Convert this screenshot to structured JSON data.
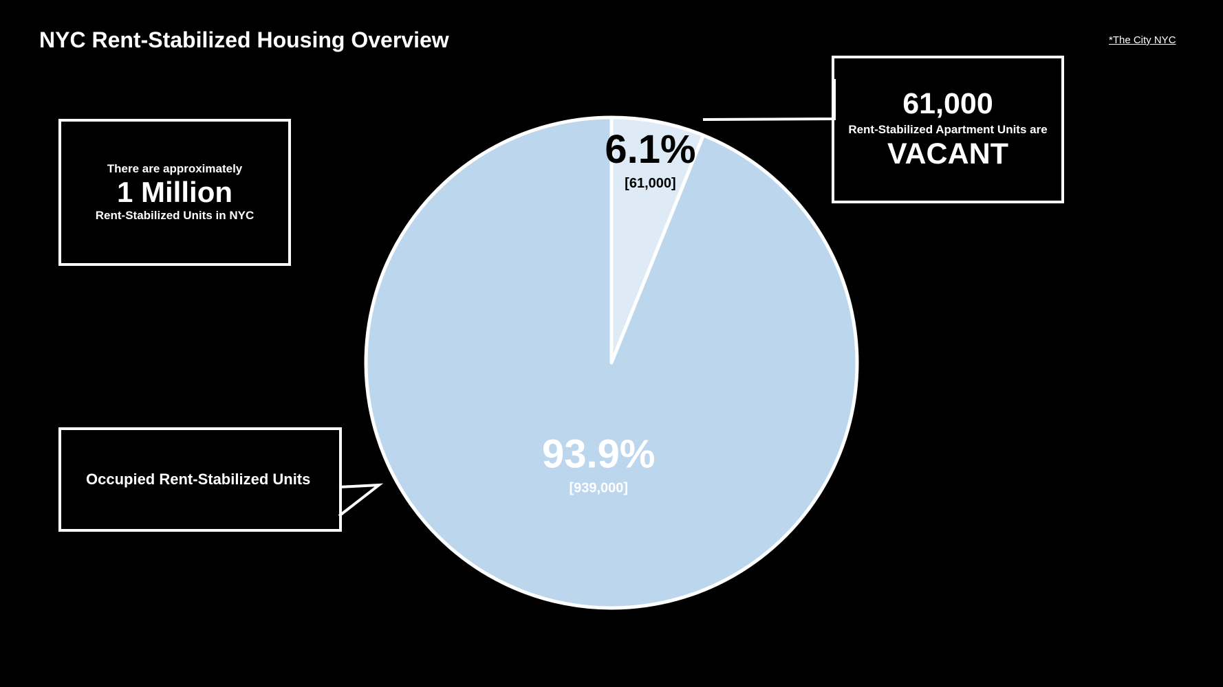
{
  "header": {
    "title": "NYC Rent-Stabilized Housing Overview",
    "source_link": "*The City NYC"
  },
  "callouts": {
    "total": {
      "pre": "There are approximately",
      "big": "1 Million",
      "post": "Rent-Stabilized Units in NYC"
    },
    "vacant": {
      "number": "61,000",
      "middle": "Rent-Stabilized Apartment Units are",
      "big": "VACANT"
    },
    "occupied": {
      "label": "Occupied Rent-Stabilized Units"
    }
  },
  "colors": {
    "background": "#000000",
    "occupied_slice": "#bcd6ed",
    "vacant_slice": "#deebf7",
    "outline": "#ffffff",
    "vacant_label": "#000000",
    "occupied_label": "#ffffff"
  },
  "chart_data": {
    "type": "pie",
    "title": "NYC Rent-Stabilized Housing Overview",
    "slices": [
      {
        "name": "Vacant",
        "percent_label": "6.1%",
        "count_label": "[61,000]",
        "value": 61000,
        "percent": 6.1
      },
      {
        "name": "Occupied",
        "percent_label": "93.9%",
        "count_label": "[939,000]",
        "value": 939000,
        "percent": 93.9
      }
    ],
    "start_angle": "12 o'clock",
    "direction": "clockwise",
    "legend": "none"
  }
}
